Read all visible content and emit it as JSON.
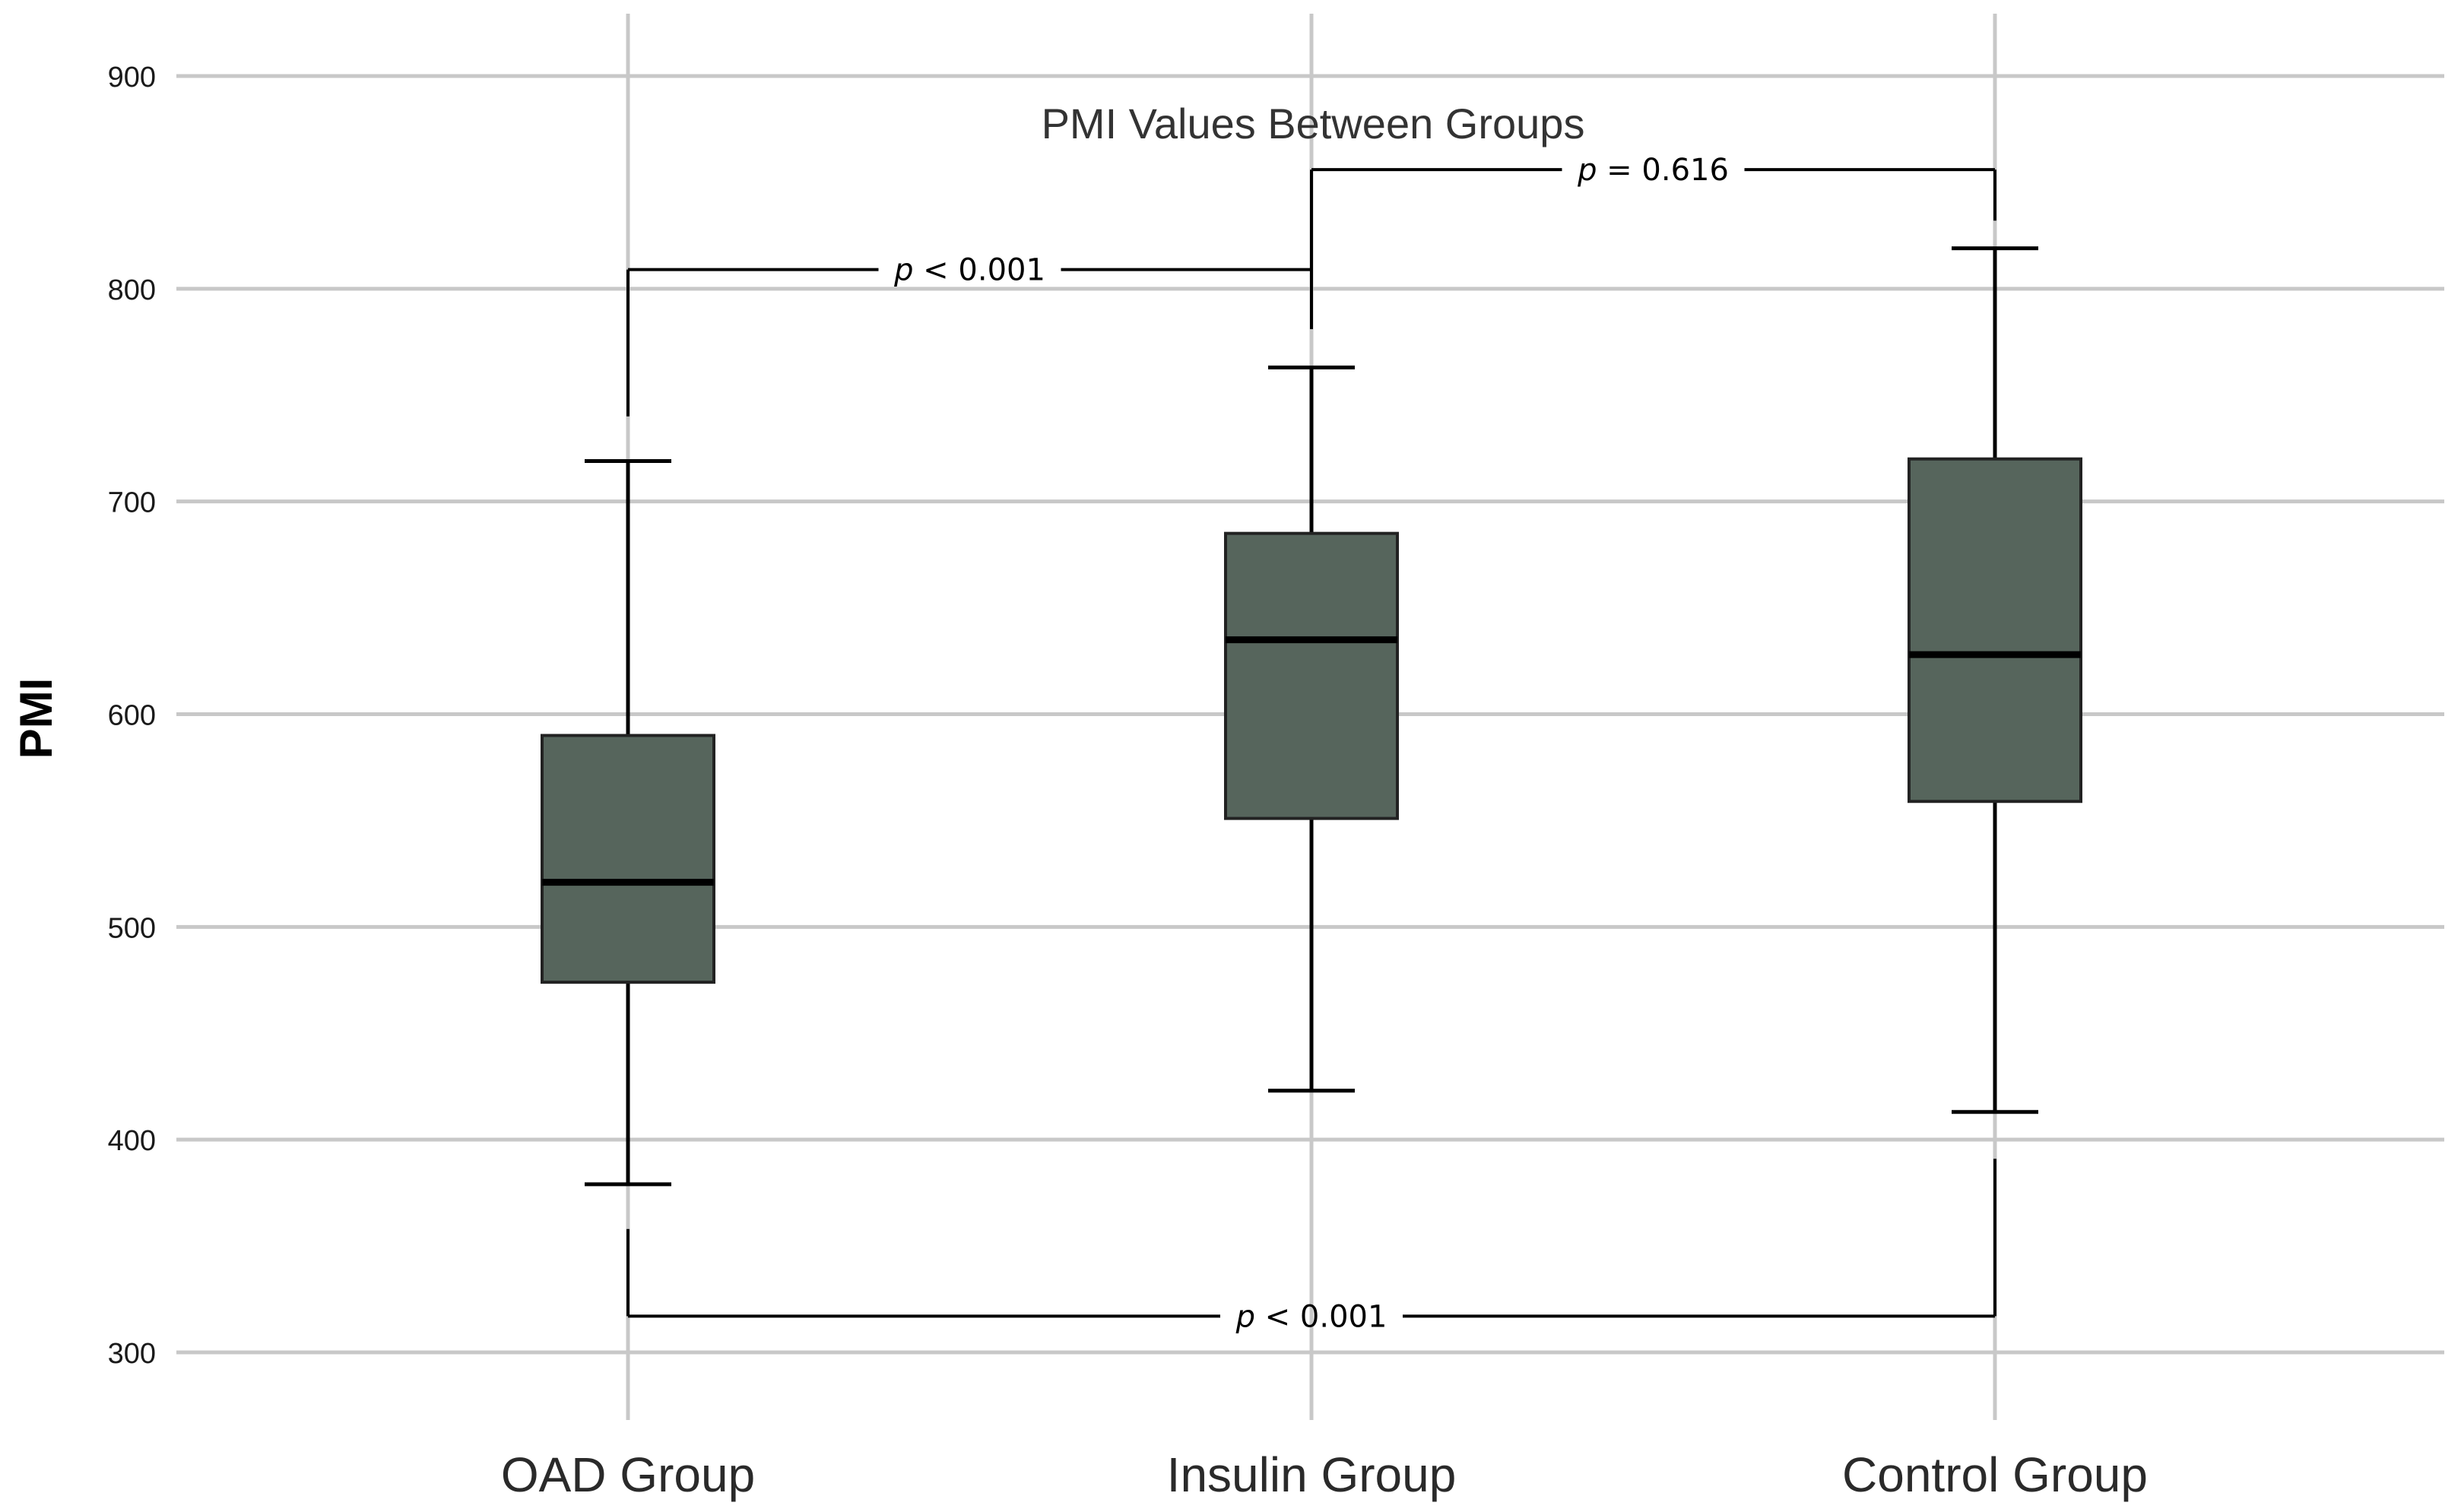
{
  "chart_data": {
    "type": "boxplot",
    "title": "PMI Values Between Groups",
    "ylabel": "PMI",
    "xlabel": "",
    "ylim": [
      270,
      930
    ],
    "yticks": [
      300,
      400,
      500,
      600,
      700,
      800,
      900
    ],
    "ytick_labels": [
      "300",
      "400",
      "500",
      "600",
      "700",
      "800",
      "900"
    ],
    "grid": true,
    "colors": {
      "box_fill": "#56655c",
      "grid": "#c8c8c8",
      "stroke": "#000000"
    },
    "categories": [
      "OAD Group",
      "Insulin Group",
      "Control Group"
    ],
    "boxes": [
      {
        "name": "OAD Group",
        "min": 379,
        "q1": 474,
        "median": 521,
        "q3": 590,
        "max": 719
      },
      {
        "name": "Insulin Group",
        "min": 423,
        "q1": 551,
        "median": 635,
        "q3": 685,
        "max": 763
      },
      {
        "name": "Control Group",
        "min": 413,
        "q1": 559,
        "median": 628,
        "q3": 720,
        "max": 819
      }
    ],
    "comparisons": [
      {
        "from": 0,
        "to": 1,
        "y": 809,
        "p_symbol": "p",
        "p_text": " < 0.001"
      },
      {
        "from": 1,
        "to": 2,
        "y": 856,
        "p_symbol": "p",
        "p_text": " = 0.616"
      },
      {
        "from": 0,
        "to": 2,
        "y": 317,
        "p_symbol": "p",
        "p_text": " < 0.001"
      }
    ]
  }
}
